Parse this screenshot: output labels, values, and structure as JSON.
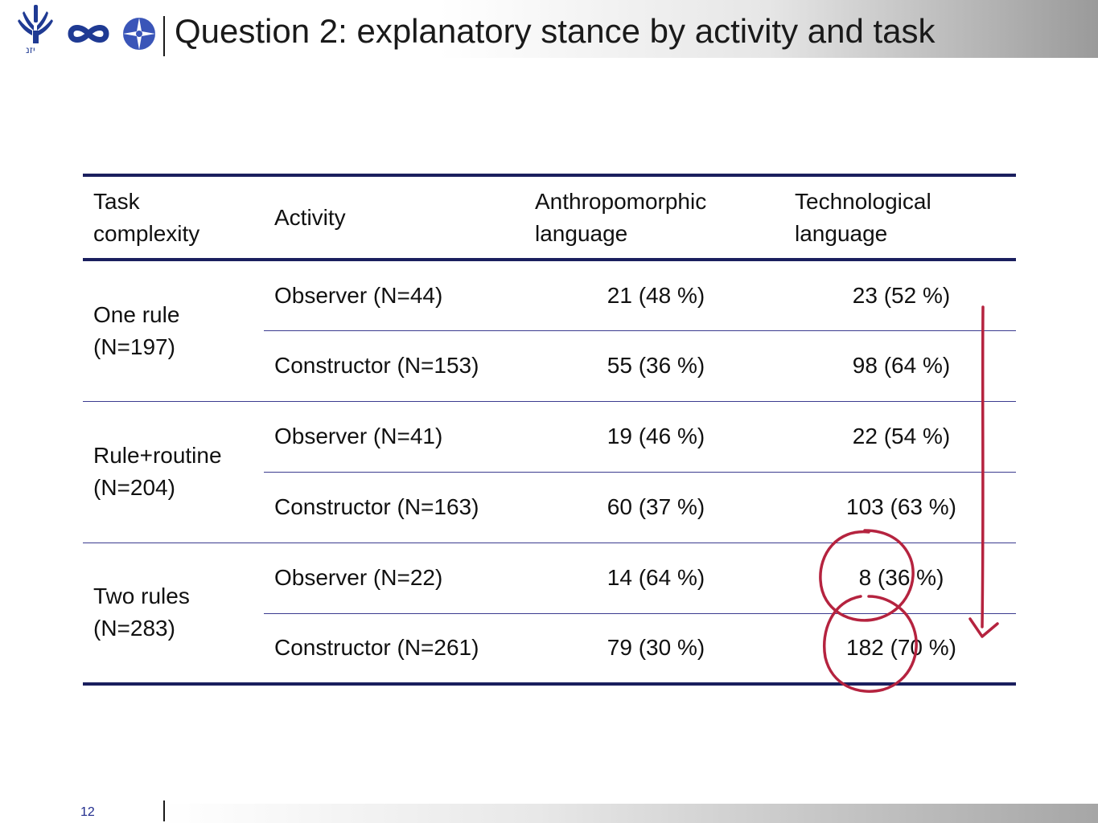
{
  "header": {
    "title": "Question 2: explanatory stance by activity and task",
    "logos": [
      "tel-aviv-university-logo",
      "infinity-logo",
      "circle-cross-logo"
    ]
  },
  "table": {
    "headers": [
      "Task complexity",
      "Activity",
      "Anthropomorphic language",
      "Technological language"
    ],
    "groups": [
      {
        "label_line1": "One rule",
        "label_line2": "(N=197)",
        "rows": [
          {
            "activity": "Observer (N=44)",
            "anthropomorphic": "21 (48 %)",
            "technological": "23 (52 %)"
          },
          {
            "activity": "Constructor (N=153)",
            "anthropomorphic": "55 (36 %)",
            "technological": "98 (64 %)"
          }
        ]
      },
      {
        "label_line1": "Rule+routine",
        "label_line2": "(N=204)",
        "rows": [
          {
            "activity": "Observer (N=41)",
            "anthropomorphic": "19 (46 %)",
            "technological": "22 (54 %)"
          },
          {
            "activity": "Constructor (N=163)",
            "anthropomorphic": "60 (37 %)",
            "technological": "103 (63 %)"
          }
        ]
      },
      {
        "label_line1": "Two rules",
        "label_line2": "(N=283)",
        "rows": [
          {
            "activity": "Observer (N=22)",
            "anthropomorphic": "14 (64 %)",
            "technological": "8 (36 %)"
          },
          {
            "activity": "Constructor (N=261)",
            "anthropomorphic": "79 (30 %)",
            "technological": "182 (70 %)"
          }
        ]
      }
    ]
  },
  "annotation_color": "#b5233f",
  "rule_color": "#1a1f5e",
  "footer": {
    "page_number": "12"
  }
}
